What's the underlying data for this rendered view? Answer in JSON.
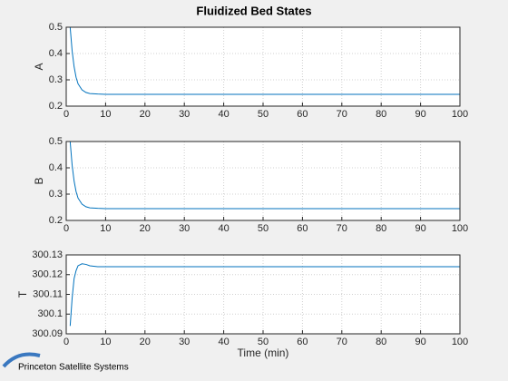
{
  "title": "Fluidized Bed States",
  "logo": "Princeton Satellite Systems",
  "chart_data": [
    {
      "type": "line",
      "ylabel": "A",
      "color": "#0072bd",
      "grid": true,
      "x": [
        1,
        1.5,
        2,
        2.5,
        3,
        4,
        5,
        6,
        8,
        10,
        100
      ],
      "values": [
        0.5,
        0.41,
        0.35,
        0.31,
        0.285,
        0.262,
        0.252,
        0.248,
        0.246,
        0.245,
        0.245
      ],
      "xlim": [
        0,
        100
      ],
      "xticks": [
        0,
        10,
        20,
        30,
        40,
        50,
        60,
        70,
        80,
        90,
        100
      ],
      "ylim": [
        0.2,
        0.5
      ],
      "yticks": [
        0.2,
        0.3,
        0.4,
        0.5
      ]
    },
    {
      "type": "line",
      "ylabel": "B",
      "color": "#0072bd",
      "grid": true,
      "x": [
        1,
        1.5,
        2,
        2.5,
        3,
        4,
        5,
        6,
        8,
        10,
        100
      ],
      "values": [
        0.5,
        0.41,
        0.35,
        0.31,
        0.285,
        0.262,
        0.252,
        0.248,
        0.246,
        0.245,
        0.245
      ],
      "xlim": [
        0,
        100
      ],
      "xticks": [
        0,
        10,
        20,
        30,
        40,
        50,
        60,
        70,
        80,
        90,
        100
      ],
      "ylim": [
        0.2,
        0.5
      ],
      "yticks": [
        0.2,
        0.3,
        0.4,
        0.5
      ]
    },
    {
      "type": "line",
      "ylabel": "T",
      "xlabel": "Time (min)",
      "color": "#0072bd",
      "grid": true,
      "x": [
        1,
        1.5,
        2,
        2.5,
        3,
        4,
        5,
        6,
        8,
        10,
        100
      ],
      "values": [
        300.094,
        300.108,
        300.118,
        300.122,
        300.1245,
        300.1255,
        300.1252,
        300.1245,
        300.124,
        300.124,
        300.124
      ],
      "xlim": [
        0,
        100
      ],
      "xticks": [
        0,
        10,
        20,
        30,
        40,
        50,
        60,
        70,
        80,
        90,
        100
      ],
      "ylim": [
        300.09,
        300.13
      ],
      "yticks": [
        300.09,
        300.1,
        300.11,
        300.12,
        300.13
      ]
    }
  ]
}
